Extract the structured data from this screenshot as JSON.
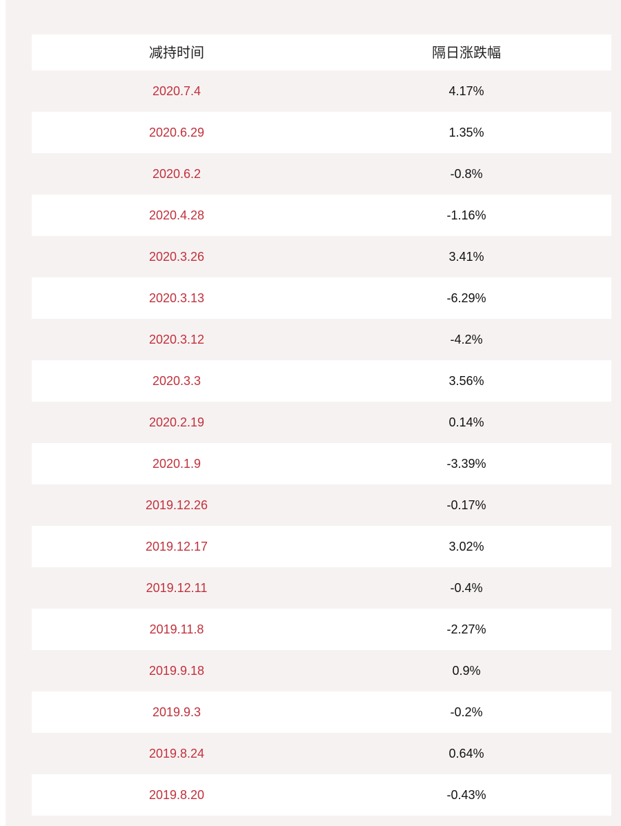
{
  "table": {
    "headers": [
      "减持时间",
      "隔日涨跌幅"
    ],
    "rows": [
      {
        "date": "2020.7.4",
        "change": "4.17%"
      },
      {
        "date": "2020.6.29",
        "change": "1.35%"
      },
      {
        "date": "2020.6.2",
        "change": "-0.8%"
      },
      {
        "date": "2020.4.28",
        "change": "-1.16%"
      },
      {
        "date": "2020.3.26",
        "change": "3.41%"
      },
      {
        "date": "2020.3.13",
        "change": "-6.29%"
      },
      {
        "date": "2020.3.12",
        "change": "-4.2%"
      },
      {
        "date": "2020.3.3",
        "change": "3.56%"
      },
      {
        "date": "2020.2.19",
        "change": "0.14%"
      },
      {
        "date": "2020.1.9",
        "change": "-3.39%"
      },
      {
        "date": "2019.12.26",
        "change": "-0.17%"
      },
      {
        "date": "2019.12.17",
        "change": "3.02%"
      },
      {
        "date": "2019.12.11",
        "change": "-0.4%"
      },
      {
        "date": "2019.11.8",
        "change": "-2.27%"
      },
      {
        "date": "2019.9.18",
        "change": "0.9%"
      },
      {
        "date": "2019.9.3",
        "change": "-0.2%"
      },
      {
        "date": "2019.8.24",
        "change": "0.64%"
      },
      {
        "date": "2019.8.20",
        "change": "-0.43%"
      }
    ]
  },
  "colors": {
    "date_text": "#c0313c",
    "value_text": "#111111",
    "stripe": "#f7f2f2",
    "row_bg": "#ffffff"
  }
}
